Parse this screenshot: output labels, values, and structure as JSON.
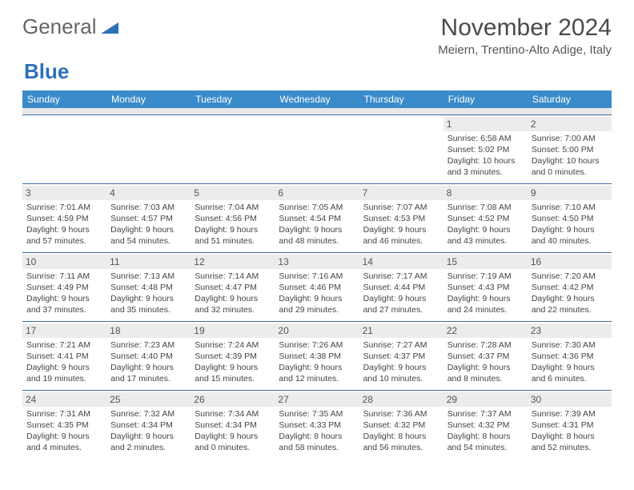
{
  "logo": {
    "general": "General",
    "blue": "Blue"
  },
  "header": {
    "month_title": "November 2024",
    "location": "Meiern, Trentino-Alto Adige, Italy"
  },
  "weekdays": [
    "Sunday",
    "Monday",
    "Tuesday",
    "Wednesday",
    "Thursday",
    "Friday",
    "Saturday"
  ],
  "colors": {
    "header_bg": "#3a8bc9",
    "header_text": "#ffffff",
    "day_label_bg": "#ececec",
    "border": "#3a6b9c",
    "logo_blue": "#2d72b8",
    "logo_gray": "#666666"
  },
  "weeks": [
    [
      {
        "n": "",
        "sunrise": "",
        "sunset": "",
        "daylight": ""
      },
      {
        "n": "",
        "sunrise": "",
        "sunset": "",
        "daylight": ""
      },
      {
        "n": "",
        "sunrise": "",
        "sunset": "",
        "daylight": ""
      },
      {
        "n": "",
        "sunrise": "",
        "sunset": "",
        "daylight": ""
      },
      {
        "n": "",
        "sunrise": "",
        "sunset": "",
        "daylight": ""
      },
      {
        "n": "1",
        "sunrise": "Sunrise: 6:58 AM",
        "sunset": "Sunset: 5:02 PM",
        "daylight": "Daylight: 10 hours and 3 minutes."
      },
      {
        "n": "2",
        "sunrise": "Sunrise: 7:00 AM",
        "sunset": "Sunset: 5:00 PM",
        "daylight": "Daylight: 10 hours and 0 minutes."
      }
    ],
    [
      {
        "n": "3",
        "sunrise": "Sunrise: 7:01 AM",
        "sunset": "Sunset: 4:59 PM",
        "daylight": "Daylight: 9 hours and 57 minutes."
      },
      {
        "n": "4",
        "sunrise": "Sunrise: 7:03 AM",
        "sunset": "Sunset: 4:57 PM",
        "daylight": "Daylight: 9 hours and 54 minutes."
      },
      {
        "n": "5",
        "sunrise": "Sunrise: 7:04 AM",
        "sunset": "Sunset: 4:56 PM",
        "daylight": "Daylight: 9 hours and 51 minutes."
      },
      {
        "n": "6",
        "sunrise": "Sunrise: 7:05 AM",
        "sunset": "Sunset: 4:54 PM",
        "daylight": "Daylight: 9 hours and 48 minutes."
      },
      {
        "n": "7",
        "sunrise": "Sunrise: 7:07 AM",
        "sunset": "Sunset: 4:53 PM",
        "daylight": "Daylight: 9 hours and 46 minutes."
      },
      {
        "n": "8",
        "sunrise": "Sunrise: 7:08 AM",
        "sunset": "Sunset: 4:52 PM",
        "daylight": "Daylight: 9 hours and 43 minutes."
      },
      {
        "n": "9",
        "sunrise": "Sunrise: 7:10 AM",
        "sunset": "Sunset: 4:50 PM",
        "daylight": "Daylight: 9 hours and 40 minutes."
      }
    ],
    [
      {
        "n": "10",
        "sunrise": "Sunrise: 7:11 AM",
        "sunset": "Sunset: 4:49 PM",
        "daylight": "Daylight: 9 hours and 37 minutes."
      },
      {
        "n": "11",
        "sunrise": "Sunrise: 7:13 AM",
        "sunset": "Sunset: 4:48 PM",
        "daylight": "Daylight: 9 hours and 35 minutes."
      },
      {
        "n": "12",
        "sunrise": "Sunrise: 7:14 AM",
        "sunset": "Sunset: 4:47 PM",
        "daylight": "Daylight: 9 hours and 32 minutes."
      },
      {
        "n": "13",
        "sunrise": "Sunrise: 7:16 AM",
        "sunset": "Sunset: 4:46 PM",
        "daylight": "Daylight: 9 hours and 29 minutes."
      },
      {
        "n": "14",
        "sunrise": "Sunrise: 7:17 AM",
        "sunset": "Sunset: 4:44 PM",
        "daylight": "Daylight: 9 hours and 27 minutes."
      },
      {
        "n": "15",
        "sunrise": "Sunrise: 7:19 AM",
        "sunset": "Sunset: 4:43 PM",
        "daylight": "Daylight: 9 hours and 24 minutes."
      },
      {
        "n": "16",
        "sunrise": "Sunrise: 7:20 AM",
        "sunset": "Sunset: 4:42 PM",
        "daylight": "Daylight: 9 hours and 22 minutes."
      }
    ],
    [
      {
        "n": "17",
        "sunrise": "Sunrise: 7:21 AM",
        "sunset": "Sunset: 4:41 PM",
        "daylight": "Daylight: 9 hours and 19 minutes."
      },
      {
        "n": "18",
        "sunrise": "Sunrise: 7:23 AM",
        "sunset": "Sunset: 4:40 PM",
        "daylight": "Daylight: 9 hours and 17 minutes."
      },
      {
        "n": "19",
        "sunrise": "Sunrise: 7:24 AM",
        "sunset": "Sunset: 4:39 PM",
        "daylight": "Daylight: 9 hours and 15 minutes."
      },
      {
        "n": "20",
        "sunrise": "Sunrise: 7:26 AM",
        "sunset": "Sunset: 4:38 PM",
        "daylight": "Daylight: 9 hours and 12 minutes."
      },
      {
        "n": "21",
        "sunrise": "Sunrise: 7:27 AM",
        "sunset": "Sunset: 4:37 PM",
        "daylight": "Daylight: 9 hours and 10 minutes."
      },
      {
        "n": "22",
        "sunrise": "Sunrise: 7:28 AM",
        "sunset": "Sunset: 4:37 PM",
        "daylight": "Daylight: 9 hours and 8 minutes."
      },
      {
        "n": "23",
        "sunrise": "Sunrise: 7:30 AM",
        "sunset": "Sunset: 4:36 PM",
        "daylight": "Daylight: 9 hours and 6 minutes."
      }
    ],
    [
      {
        "n": "24",
        "sunrise": "Sunrise: 7:31 AM",
        "sunset": "Sunset: 4:35 PM",
        "daylight": "Daylight: 9 hours and 4 minutes."
      },
      {
        "n": "25",
        "sunrise": "Sunrise: 7:32 AM",
        "sunset": "Sunset: 4:34 PM",
        "daylight": "Daylight: 9 hours and 2 minutes."
      },
      {
        "n": "26",
        "sunrise": "Sunrise: 7:34 AM",
        "sunset": "Sunset: 4:34 PM",
        "daylight": "Daylight: 9 hours and 0 minutes."
      },
      {
        "n": "27",
        "sunrise": "Sunrise: 7:35 AM",
        "sunset": "Sunset: 4:33 PM",
        "daylight": "Daylight: 8 hours and 58 minutes."
      },
      {
        "n": "28",
        "sunrise": "Sunrise: 7:36 AM",
        "sunset": "Sunset: 4:32 PM",
        "daylight": "Daylight: 8 hours and 56 minutes."
      },
      {
        "n": "29",
        "sunrise": "Sunrise: 7:37 AM",
        "sunset": "Sunset: 4:32 PM",
        "daylight": "Daylight: 8 hours and 54 minutes."
      },
      {
        "n": "30",
        "sunrise": "Sunrise: 7:39 AM",
        "sunset": "Sunset: 4:31 PM",
        "daylight": "Daylight: 8 hours and 52 minutes."
      }
    ]
  ]
}
